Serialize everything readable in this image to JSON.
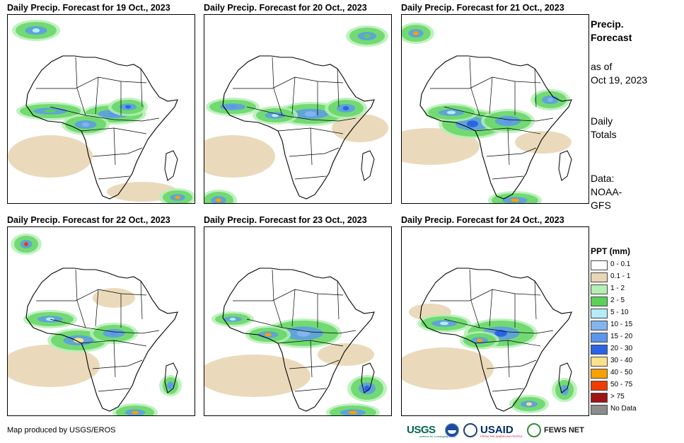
{
  "panels": [
    {
      "title": "Daily Precip. Forecast for 19 Oct., 2023"
    },
    {
      "title": "Daily Precip. Forecast for 20 Oct., 2023"
    },
    {
      "title": "Daily Precip. Forecast for 21 Oct., 2023"
    },
    {
      "title": "Daily Precip. Forecast for 22 Oct., 2023"
    },
    {
      "title": "Daily Precip. Forecast for 23 Oct., 2023"
    },
    {
      "title": "Daily Precip. Forecast for 24 Oct., 2023"
    }
  ],
  "sidebar": {
    "title_line1": "Precip.",
    "title_line2": "Forecast",
    "asof_line1": "as of",
    "asof_line2": "Oct 19, 2023",
    "totals_line1": "Daily",
    "totals_line2": "Totals",
    "source_line1": "Data:",
    "source_line2": "NOAA-",
    "source_line3": "GFS"
  },
  "legend": {
    "title": "PPT (mm)",
    "items": [
      {
        "label": "0 - 0.1",
        "color": "#ffffff"
      },
      {
        "label": "0.1 - 1",
        "color": "#e8d6b4"
      },
      {
        "label": "1 - 2",
        "color": "#b4f0b4"
      },
      {
        "label": "2 - 5",
        "color": "#5ad25a"
      },
      {
        "label": "5 - 10",
        "color": "#b4ecf8"
      },
      {
        "label": "10 - 15",
        "color": "#82b4f0"
      },
      {
        "label": "15 - 20",
        "color": "#5a96ee"
      },
      {
        "label": "20 - 30",
        "color": "#2a64e6"
      },
      {
        "label": "30 - 40",
        "color": "#fae28c"
      },
      {
        "label": "40 - 50",
        "color": "#f8a000"
      },
      {
        "label": "50 - 75",
        "color": "#f03c00"
      },
      {
        "label": "> 75",
        "color": "#a01414"
      },
      {
        "label": "No Data",
        "color": "#8c8c8c"
      }
    ]
  },
  "footer": {
    "credit": "Map produced by USGS/EROS",
    "logos": {
      "usgs": "USGS",
      "usgs_tagline": "science for a changing world",
      "usaid": "USAID",
      "usaid_tagline": "FROM THE AMERICAN PEOPLE",
      "fews": "FEWS NET"
    }
  }
}
